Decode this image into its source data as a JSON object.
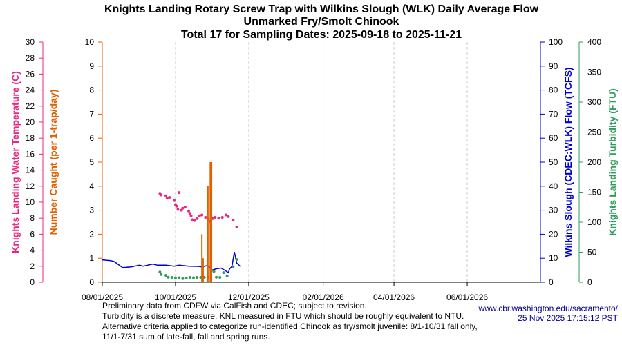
{
  "chart_data": {
    "type": "line",
    "title": [
      "Knights Landing Rotary Screw Trap with Wilkins Slough (WLK) Daily Average Flow",
      "Unmarked Fry/Smolt Chinook",
      "Total 17 for Sampling Dates: 2025-09-18 to 2025-11-21"
    ],
    "xlim": [
      "2025-08-01",
      "2026-08-01"
    ],
    "xticks": [
      "08/01/2025",
      "10/01/2025",
      "12/01/2025",
      "02/01/2026",
      "04/01/2026",
      "06/01/2026"
    ],
    "grid": "vertical dashed",
    "axes": {
      "temperature": {
        "label": "Knights Landing Water Temperature (C)",
        "ylim": [
          0,
          30
        ],
        "ticks": [
          0,
          2,
          4,
          6,
          8,
          10,
          12,
          14,
          16,
          18,
          20,
          22,
          24,
          26,
          28,
          30
        ],
        "color": "#e8297f"
      },
      "catch": {
        "label": "Number Caught (per 1-trap/day)",
        "ylim": [
          0,
          10
        ],
        "ticks": [
          0,
          1,
          2,
          3,
          4,
          5,
          6,
          7,
          8,
          9,
          10
        ],
        "color": "#e06000"
      },
      "flow": {
        "label": "Wilkins Slough (CDEC:WLK) Flow (TCFS)",
        "ylim": [
          0,
          100
        ],
        "ticks": [
          0,
          10,
          20,
          30,
          40,
          50,
          60,
          70,
          80,
          90,
          100
        ],
        "color": "#0000cc"
      },
      "turbidity": {
        "label": "Knights Landing Turbidity (FTU)",
        "ylim": [
          0,
          400
        ],
        "ticks": [
          0,
          50,
          100,
          150,
          200,
          250,
          300,
          350,
          400
        ],
        "color": "#2e9e5e"
      }
    },
    "series": {
      "catch": [
        [
          "2025-10-23",
          2
        ],
        [
          "2025-10-24",
          1
        ],
        [
          "2025-10-28",
          4
        ],
        [
          "2025-10-30",
          5
        ],
        [
          "2025-10-31",
          5
        ]
      ],
      "temperature": [
        [
          "2025-09-18",
          11.1
        ],
        [
          "2025-09-19",
          10.9
        ],
        [
          "2025-09-23",
          10.8
        ],
        [
          "2025-09-24",
          10.5
        ],
        [
          "2025-09-26",
          10.6
        ],
        [
          "2025-09-30",
          10.2
        ],
        [
          "2025-10-01",
          9.7
        ],
        [
          "2025-10-02",
          9.5
        ],
        [
          "2025-10-03",
          9.1
        ],
        [
          "2025-10-04",
          11.2
        ],
        [
          "2025-10-06",
          9.0
        ],
        [
          "2025-10-07",
          9.25
        ],
        [
          "2025-10-09",
          9.4
        ],
        [
          "2025-10-12",
          8.9
        ],
        [
          "2025-10-13",
          8.6
        ],
        [
          "2025-10-14",
          8.3
        ],
        [
          "2025-10-15",
          7.8
        ],
        [
          "2025-10-17",
          7.7
        ],
        [
          "2025-10-19",
          7.95
        ],
        [
          "2025-10-21",
          8.3
        ],
        [
          "2025-10-23",
          8.4
        ],
        [
          "2025-10-26",
          8.1
        ],
        [
          "2025-10-28",
          7.9
        ],
        [
          "2025-10-30",
          7.6
        ],
        [
          "2025-11-01",
          7.95
        ],
        [
          "2025-11-03",
          8.1
        ],
        [
          "2025-11-06",
          8.0
        ],
        [
          "2025-11-09",
          8.1
        ],
        [
          "2025-11-12",
          8.4
        ],
        [
          "2025-11-14",
          8.2
        ],
        [
          "2025-11-18",
          7.75
        ],
        [
          "2025-11-21",
          6.9
        ]
      ],
      "flow": [
        [
          "2025-08-01",
          9.3
        ],
        [
          "2025-08-08",
          9.0
        ],
        [
          "2025-08-11",
          8.6
        ],
        [
          "2025-08-18",
          6.1
        ],
        [
          "2025-08-25",
          6.4
        ],
        [
          "2025-09-01",
          7.1
        ],
        [
          "2025-09-04",
          6.7
        ],
        [
          "2025-09-12",
          7.6
        ],
        [
          "2025-09-16",
          7.1
        ],
        [
          "2025-09-23",
          7.1
        ],
        [
          "2025-09-30",
          6.7
        ],
        [
          "2025-10-04",
          7.1
        ],
        [
          "2025-10-12",
          6.7
        ],
        [
          "2025-10-20",
          6.6
        ],
        [
          "2025-10-23",
          6.4
        ],
        [
          "2025-10-27",
          6.9
        ],
        [
          "2025-10-29",
          6.4
        ],
        [
          "2025-10-31",
          5.0
        ],
        [
          "2025-11-04",
          5.6
        ],
        [
          "2025-11-08",
          5.9
        ],
        [
          "2025-11-11",
          5.0
        ],
        [
          "2025-11-14",
          4.0
        ],
        [
          "2025-11-15",
          5.5
        ],
        [
          "2025-11-17",
          6.6
        ],
        [
          "2025-11-19",
          12.6
        ],
        [
          "2025-11-21",
          8.0
        ],
        [
          "2025-11-24",
          6.6
        ]
      ],
      "turbidity": [
        [
          "2025-09-18",
          17
        ],
        [
          "2025-09-19",
          13
        ],
        [
          "2025-09-23",
          11.5
        ],
        [
          "2025-09-25",
          8.4
        ],
        [
          "2025-09-28",
          8
        ],
        [
          "2025-10-01",
          7.2
        ],
        [
          "2025-10-04",
          7.5
        ],
        [
          "2025-10-07",
          6
        ],
        [
          "2025-10-10",
          7
        ],
        [
          "2025-10-13",
          8
        ],
        [
          "2025-10-16",
          7.5
        ],
        [
          "2025-10-19",
          8
        ],
        [
          "2025-10-22",
          8
        ],
        [
          "2025-10-25",
          8.2
        ],
        [
          "2025-10-28",
          8.4
        ],
        [
          "2025-10-31",
          20
        ],
        [
          "2025-11-02",
          18
        ],
        [
          "2025-11-04",
          8.4
        ],
        [
          "2025-11-07",
          8
        ],
        [
          "2025-11-10",
          16
        ],
        [
          "2025-11-13",
          10
        ],
        [
          "2025-11-18",
          25.6
        ],
        [
          "2025-11-21",
          38
        ]
      ]
    }
  },
  "footer": {
    "notes": [
      "Preliminary data from CDFW via CalFish and CDEC; subject to revision.",
      "Turbidity is a discrete measure. KNL measured in FTU which should be roughly equivalent to NTU.",
      "Alternative criteria applied to categorize run-identified Chinook as fry/smolt juvenile: 8/1-10/31 fall only,",
      " 11/1-7/31 sum of late-fall, fall and spring runs."
    ],
    "site": "www.cbr.washington.edu/sacramento/",
    "timestamp": "25 Nov 2025 17:15:12 PST"
  }
}
